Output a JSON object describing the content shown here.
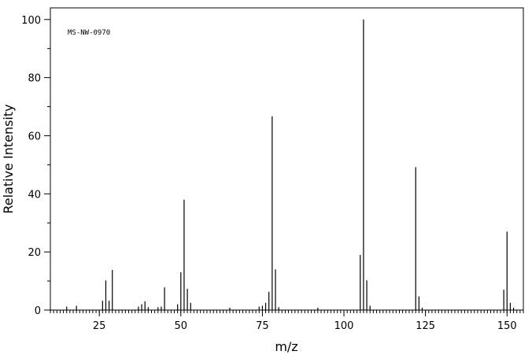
{
  "chart_data": {
    "type": "bar",
    "title": "",
    "annotation": "MS-NW-0970",
    "xlabel": "m/z",
    "ylabel": "Relative Intensity",
    "xlim": [
      10,
      155
    ],
    "ylim": [
      0,
      104
    ],
    "x_ticks_major": [
      25,
      50,
      75,
      100,
      125,
      150
    ],
    "x_tick_labels": [
      "25",
      "50",
      "75",
      "100",
      "125",
      "150"
    ],
    "y_ticks_major": [
      0,
      20,
      40,
      60,
      80,
      100
    ],
    "y_tick_labels": [
      "0",
      "20",
      "40",
      "60",
      "80",
      "100"
    ],
    "grid": false,
    "color": "#000000",
    "peaks": [
      {
        "mz": 15,
        "intensity": 1.2
      },
      {
        "mz": 18,
        "intensity": 1.5
      },
      {
        "mz": 26,
        "intensity": 3.2
      },
      {
        "mz": 27,
        "intensity": 10.2
      },
      {
        "mz": 28,
        "intensity": 3.2
      },
      {
        "mz": 29,
        "intensity": 13.8
      },
      {
        "mz": 37,
        "intensity": 1.2
      },
      {
        "mz": 38,
        "intensity": 2.0
      },
      {
        "mz": 39,
        "intensity": 3.0
      },
      {
        "mz": 40,
        "intensity": 1.0
      },
      {
        "mz": 43,
        "intensity": 1.0
      },
      {
        "mz": 44,
        "intensity": 1.2
      },
      {
        "mz": 45,
        "intensity": 7.8
      },
      {
        "mz": 49,
        "intensity": 2.0
      },
      {
        "mz": 50,
        "intensity": 13.0
      },
      {
        "mz": 51,
        "intensity": 38.0
      },
      {
        "mz": 52,
        "intensity": 7.3
      },
      {
        "mz": 53,
        "intensity": 2.5
      },
      {
        "mz": 65,
        "intensity": 0.8
      },
      {
        "mz": 74,
        "intensity": 1.2
      },
      {
        "mz": 75,
        "intensity": 1.5
      },
      {
        "mz": 76,
        "intensity": 2.5
      },
      {
        "mz": 77,
        "intensity": 6.3
      },
      {
        "mz": 78,
        "intensity": 66.7
      },
      {
        "mz": 79,
        "intensity": 14.0
      },
      {
        "mz": 80,
        "intensity": 1.0
      },
      {
        "mz": 92,
        "intensity": 0.8
      },
      {
        "mz": 105,
        "intensity": 19.0
      },
      {
        "mz": 106,
        "intensity": 100.0
      },
      {
        "mz": 107,
        "intensity": 10.2
      },
      {
        "mz": 108,
        "intensity": 1.5
      },
      {
        "mz": 122,
        "intensity": 49.2
      },
      {
        "mz": 123,
        "intensity": 4.7
      },
      {
        "mz": 124,
        "intensity": 0.8
      },
      {
        "mz": 149,
        "intensity": 7.0
      },
      {
        "mz": 150,
        "intensity": 27.0
      },
      {
        "mz": 151,
        "intensity": 2.5
      },
      {
        "mz": 152,
        "intensity": 0.8
      }
    ]
  }
}
